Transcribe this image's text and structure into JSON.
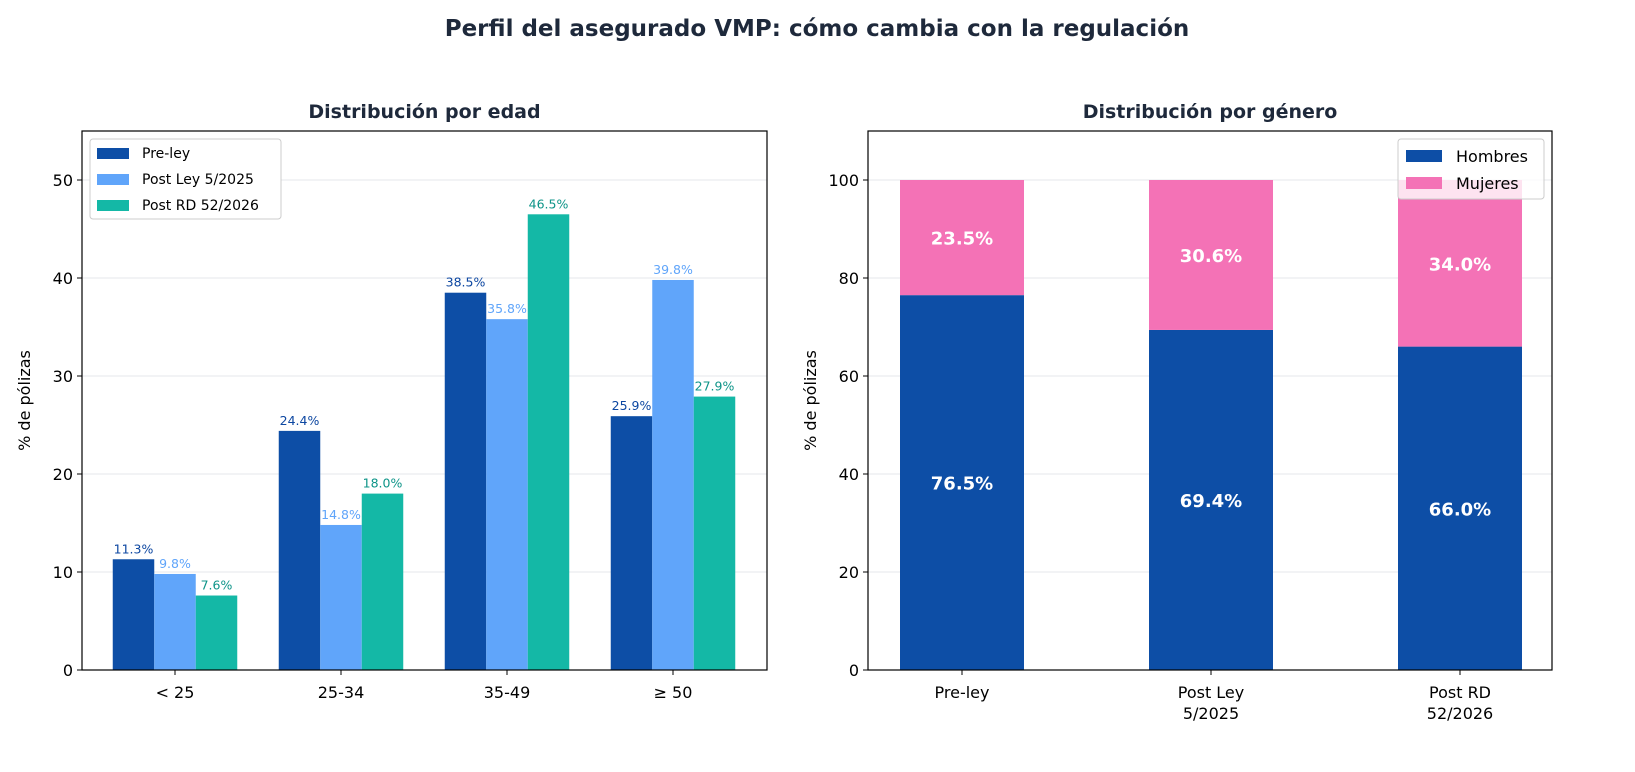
{
  "title": "Perfil del asegurado VMP: cómo cambia con la regulación",
  "chart_data": [
    {
      "type": "bar",
      "title": "Distribución por edad",
      "xlabel": "",
      "ylabel": "% de pólizas",
      "ylim": [
        0,
        55
      ],
      "yticks": [
        "0",
        "10",
        "20",
        "30",
        "40",
        "50"
      ],
      "grid": "y",
      "legend": "top-left",
      "categories": [
        "< 25",
        "25-34",
        "35-49",
        "≥ 50"
      ],
      "series": [
        {
          "name": "Pre-ley",
          "values": [
            11.3,
            24.4,
            38.5,
            25.9
          ],
          "labels": [
            "11.3%",
            "24.4%",
            "38.5%",
            "25.9%"
          ],
          "color": "#0d4ea6",
          "label_color": "#0d47a1"
        },
        {
          "name": "Post Ley 5/2025",
          "values": [
            9.8,
            14.8,
            35.8,
            39.8
          ],
          "labels": [
            "9.8%",
            "14.8%",
            "35.8%",
            "39.8%"
          ],
          "color": "#60a5fa",
          "label_color": "#60a5fa"
        },
        {
          "name": "Post RD 52/2026",
          "values": [
            7.6,
            18.0,
            46.5,
            27.9
          ],
          "labels": [
            "7.6%",
            "18.0%",
            "46.5%",
            "27.9%"
          ],
          "color": "#14b8a6",
          "label_color": "#0d9488"
        }
      ]
    },
    {
      "type": "stacked-bar",
      "title": "Distribución por género",
      "xlabel": "",
      "ylabel": "% de pólizas",
      "ylim": [
        0,
        110
      ],
      "yticks": [
        "0",
        "20",
        "40",
        "60",
        "80",
        "100"
      ],
      "grid": "y",
      "legend": "top-right",
      "categories": [
        [
          "Pre-ley"
        ],
        [
          "Post Ley",
          "5/2025"
        ],
        [
          "Post RD",
          "52/2026"
        ]
      ],
      "series": [
        {
          "name": "Hombres",
          "values": [
            76.5,
            69.4,
            66.0
          ],
          "labels": [
            "76.5%",
            "69.4%",
            "66.0%"
          ],
          "color": "#0d4ea6"
        },
        {
          "name": "Mujeres",
          "values": [
            23.5,
            30.6,
            34.0
          ],
          "labels": [
            "23.5%",
            "30.6%",
            "34.0%"
          ],
          "color": "#f472b6"
        }
      ]
    }
  ]
}
